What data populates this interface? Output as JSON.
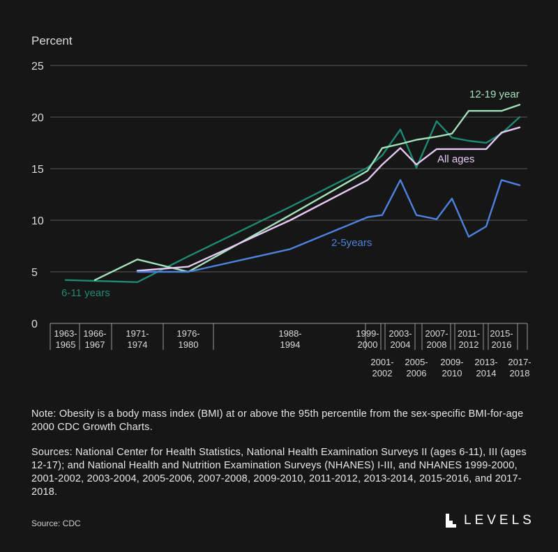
{
  "chart_data": {
    "type": "line",
    "ylabel": "Percent",
    "ylim": [
      0,
      25
    ],
    "yticks": [
      0,
      5,
      10,
      15,
      20,
      25
    ],
    "grid": true,
    "periods": [
      {
        "label1": "1963-",
        "label2": "1965",
        "row": 1
      },
      {
        "label1": "1966-",
        "label2": "1967",
        "row": 1
      },
      {
        "label1": "1971-",
        "label2": "1974",
        "row": 1
      },
      {
        "label1": "1976-",
        "label2": "1980",
        "row": 1
      },
      {
        "label1": "1988-",
        "label2": "1994",
        "row": 1
      },
      {
        "label1": "1999-",
        "label2": "2000",
        "row": 1
      },
      {
        "label1": "2001-",
        "label2": "2002",
        "row": 2
      },
      {
        "label1": "2003-",
        "label2": "2004",
        "row": 1
      },
      {
        "label1": "2005-",
        "label2": "2006",
        "row": 2
      },
      {
        "label1": "2007-",
        "label2": "2008",
        "row": 1
      },
      {
        "label1": "2009-",
        "label2": "2010",
        "row": 2
      },
      {
        "label1": "2011-",
        "label2": "2012",
        "row": 1
      },
      {
        "label1": "2013-",
        "label2": "2014",
        "row": 2
      },
      {
        "label1": "2015-",
        "label2": "2016",
        "row": 1
      },
      {
        "label1": "2017-",
        "label2": "2018",
        "row": 2
      }
    ],
    "series": [
      {
        "name": "6-11 years",
        "color": "#1e8a74",
        "values": [
          4.2,
          null,
          4.0,
          6.5,
          11.3,
          15.1,
          16.3,
          18.8,
          15.1,
          19.6,
          18.0,
          17.7,
          17.5,
          18.4,
          20.0
        ]
      },
      {
        "name": "12-19 year",
        "color": "#a3e2bb",
        "values": [
          null,
          4.2,
          6.2,
          5.0,
          10.5,
          14.8,
          17.0,
          17.4,
          17.8,
          18.1,
          18.4,
          20.6,
          20.6,
          20.6,
          21.2
        ]
      },
      {
        "name": "All ages",
        "color": "#e7c9f4",
        "values": [
          null,
          null,
          5.1,
          5.5,
          10.0,
          13.9,
          15.4,
          17.0,
          15.4,
          16.9,
          16.9,
          16.9,
          16.9,
          18.5,
          19.0
        ]
      },
      {
        "name": "2-5years",
        "color": "#4d83de",
        "values": [
          null,
          null,
          5.0,
          5.0,
          7.2,
          10.3,
          10.5,
          13.9,
          10.5,
          10.1,
          12.1,
          8.4,
          9.4,
          13.9,
          13.4
        ]
      }
    ]
  },
  "note": "Note: Obesity is a body mass index (BMI) at or above the 95th percentile from the sex-specific BMI-for-age 2000 CDC Growth Charts.",
  "sources": "Sources: National Center for Health Statistics, National Health Examination Surveys II (ages 6-11), III (ages 12-17); and National Health and Nutrition Examination Surveys (NHANES) I-III, and NHANES 1999-2000, 2001-2002, 2003-2004, 2005-2006, 2007-2008, 2009-2010, 2011-2012, 2013-2014, 2015-2016, and 2017-2018.",
  "credit": "Source: CDC",
  "brand": "LEVELS"
}
